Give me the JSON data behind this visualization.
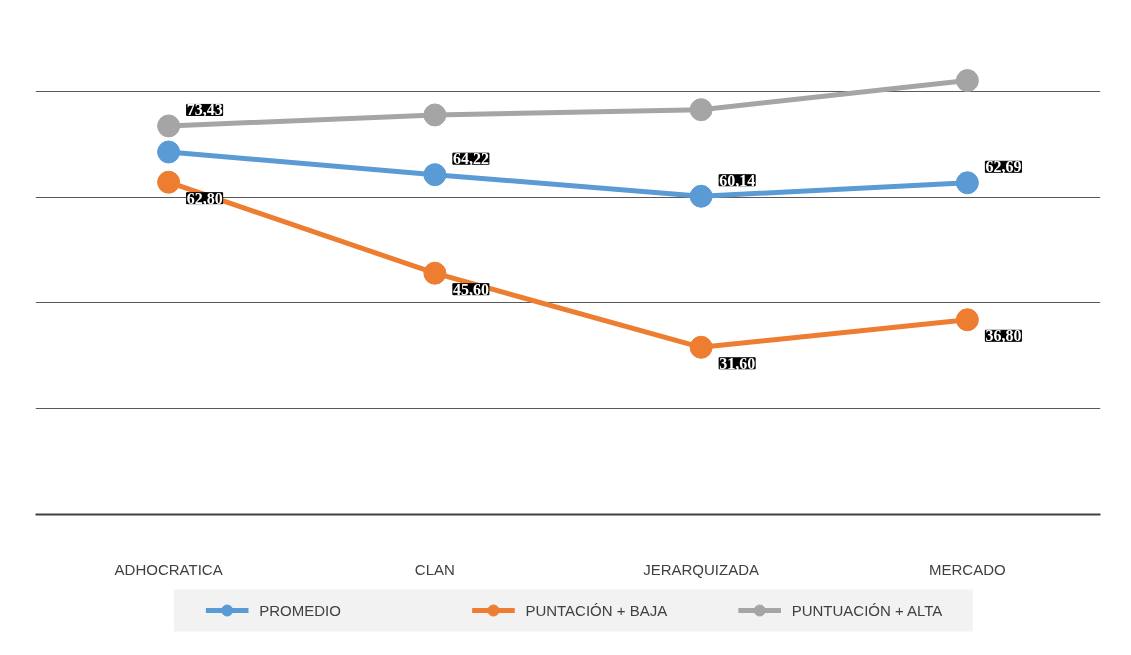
{
  "chart_data": {
    "type": "line",
    "categories": [
      "ADHOCRATICA",
      "CLAN",
      "JERARQUIZADA",
      "MERCADO"
    ],
    "series": [
      {
        "name": "PROMEDIO",
        "color": "#5b9bd5",
        "values": [
          68.5,
          64.22,
          60.14,
          62.69
        ],
        "value_labels": [
          null,
          "64,22",
          "60,14",
          "62,69"
        ]
      },
      {
        "name": "PUNTACIÓN + BAJA",
        "color": "#ed7d31",
        "values": [
          62.8,
          45.6,
          31.6,
          36.8
        ],
        "value_labels": [
          "62,80",
          "45,60",
          "31,60",
          "36,80"
        ]
      },
      {
        "name": "PUNTUACIÓN + ALTA",
        "color": "#a5a5a5",
        "values": [
          73.43,
          75.5,
          76.5,
          82.0
        ],
        "value_labels": [
          "73,43",
          null,
          null,
          null
        ]
      }
    ],
    "grid": "y",
    "legend": "bottom",
    "marker": "circle",
    "line_style": "solid",
    "tick_labels": "x"
  }
}
